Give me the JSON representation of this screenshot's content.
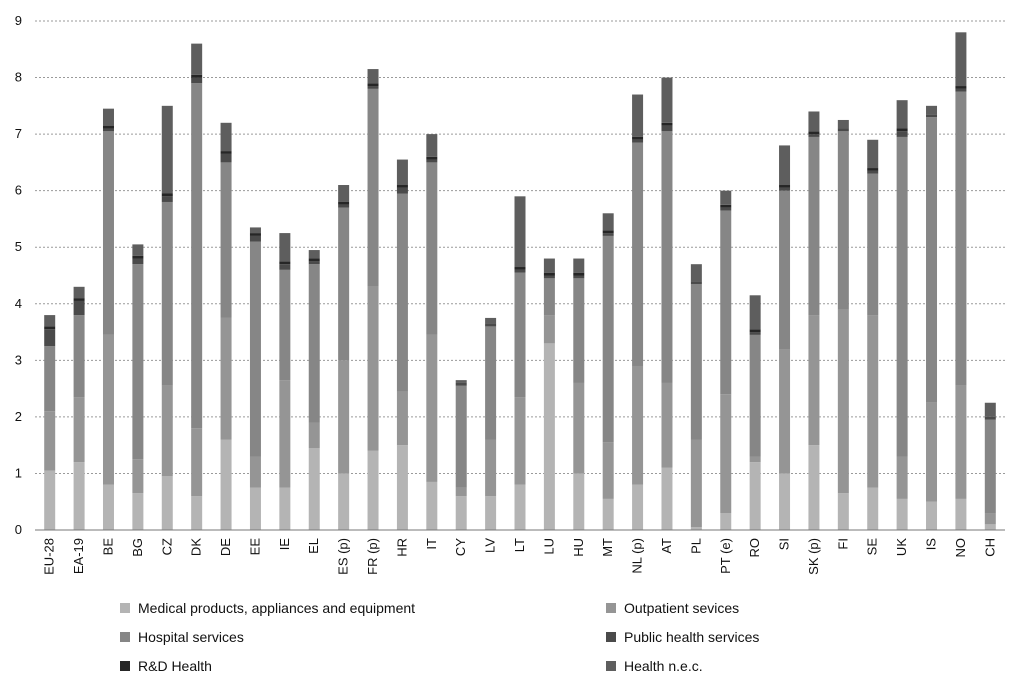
{
  "chart_data": {
    "type": "bar",
    "stacked": true,
    "title": "",
    "xlabel": "",
    "ylabel": "",
    "ylim": [
      0,
      9
    ],
    "yticks": [
      0,
      1,
      2,
      3,
      4,
      5,
      6,
      7,
      8,
      9
    ],
    "grid": "horizontal",
    "legend_position": "bottom",
    "categories": [
      "EU-28",
      "EA-19",
      "BE",
      "BG",
      "CZ",
      "DK",
      "DE",
      "EE",
      "IE",
      "EL",
      "ES (p)",
      "FR (p)",
      "HR",
      "IT",
      "CY",
      "LV",
      "LT",
      "LU",
      "HU",
      "MT",
      "NL (p)",
      "AT",
      "PL",
      "PT (e)",
      "RO",
      "SI",
      "SK (p)",
      "FI",
      "SE",
      "UK",
      "IS",
      "NO",
      "CH"
    ],
    "series": [
      {
        "name": "Medical products, appliances and equipment",
        "color": "#b4b4b4",
        "values": [
          1.05,
          1.2,
          0.8,
          0.65,
          0.95,
          0.6,
          1.6,
          0.75,
          0.75,
          1.45,
          1.0,
          1.4,
          1.5,
          0.85,
          0.6,
          0.6,
          0.8,
          3.3,
          1.0,
          0.55,
          0.8,
          1.1,
          0.05,
          0.3,
          1.2,
          1.0,
          1.5,
          0.65,
          0.75,
          0.55,
          0.5,
          0.55,
          0.1
        ]
      },
      {
        "name": "Outpatient sevices",
        "color": "#959595",
        "values": [
          1.05,
          1.15,
          2.65,
          0.6,
          1.6,
          1.2,
          2.15,
          0.55,
          1.9,
          0.45,
          2.0,
          2.9,
          0.95,
          2.6,
          0.15,
          1.0,
          1.55,
          0.5,
          1.6,
          1.0,
          2.1,
          1.5,
          1.55,
          2.1,
          0.1,
          2.2,
          2.3,
          3.25,
          3.05,
          0.75,
          1.75,
          2.0,
          0.2
        ]
      },
      {
        "name": "Hospital services",
        "color": "#868686",
        "values": [
          1.15,
          1.45,
          3.6,
          3.45,
          3.25,
          6.1,
          2.75,
          3.8,
          1.95,
          2.8,
          2.7,
          3.5,
          3.5,
          3.05,
          1.8,
          2.0,
          2.2,
          0.65,
          1.85,
          3.65,
          3.95,
          4.45,
          2.75,
          3.25,
          2.15,
          2.8,
          3.15,
          3.15,
          2.5,
          5.65,
          5.05,
          5.2,
          1.65
        ]
      },
      {
        "name": "Public health services",
        "color": "#4a4a4a",
        "values": [
          0.3,
          0.25,
          0.05,
          0.1,
          0.1,
          0.1,
          0.15,
          0.1,
          0.1,
          0.05,
          0.05,
          0.05,
          0.1,
          0.05,
          0.05,
          0.05,
          0.05,
          0.05,
          0.05,
          0.05,
          0.05,
          0.1,
          0.05,
          0.05,
          0.05,
          0.05,
          0.05,
          0.05,
          0.05,
          0.1,
          0.05,
          0.05,
          0.05
        ]
      },
      {
        "name": "R&D Health",
        "color": "#262626",
        "values": [
          0.05,
          0.05,
          0.05,
          0.05,
          0.05,
          0.05,
          0.05,
          0.05,
          0.05,
          0.05,
          0.05,
          0.05,
          0.05,
          0.05,
          0.0,
          0.0,
          0.05,
          0.05,
          0.05,
          0.05,
          0.05,
          0.05,
          0.0,
          0.05,
          0.05,
          0.05,
          0.05,
          0.0,
          0.05,
          0.05,
          0.0,
          0.05,
          0.0
        ]
      },
      {
        "name": "Health n.e.c.",
        "color": "#5e5e5e",
        "values": [
          0.2,
          0.2,
          0.3,
          0.2,
          1.55,
          0.55,
          0.5,
          0.1,
          0.5,
          0.15,
          0.3,
          0.25,
          0.45,
          0.4,
          0.05,
          0.1,
          1.25,
          0.25,
          0.25,
          0.3,
          0.75,
          0.8,
          0.3,
          0.25,
          0.6,
          0.7,
          0.35,
          0.15,
          0.5,
          0.5,
          0.15,
          0.95,
          0.25
        ]
      }
    ]
  }
}
